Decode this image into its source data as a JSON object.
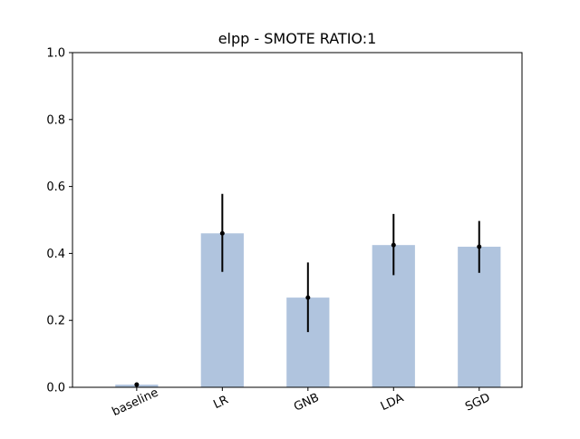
{
  "chart_data": {
    "type": "bar",
    "title": "elpp - SMOTE RATIO:1",
    "xlabel": "",
    "ylabel": "",
    "categories": [
      "baseline",
      "LR",
      "GNB",
      "LDA",
      "SGD"
    ],
    "values": [
      0.008,
      0.46,
      0.268,
      0.425,
      0.42
    ],
    "error_bars": [
      {
        "low": 0.003,
        "high": 0.013
      },
      {
        "low": 0.345,
        "high": 0.578
      },
      {
        "low": 0.165,
        "high": 0.373
      },
      {
        "low": 0.335,
        "high": 0.518
      },
      {
        "low": 0.342,
        "high": 0.497
      }
    ],
    "ylim": [
      0,
      1.0
    ],
    "yticks": [
      0.0,
      0.2,
      0.4,
      0.6,
      0.8,
      1.0
    ],
    "ytick_labels": [
      "0.0",
      "0.2",
      "0.4",
      "0.6",
      "0.8",
      "1.0"
    ],
    "grid": false,
    "xtick_rotation": 25,
    "colors": {
      "bar": "#b0c4de",
      "error": "#000000",
      "axis": "#000000"
    }
  }
}
